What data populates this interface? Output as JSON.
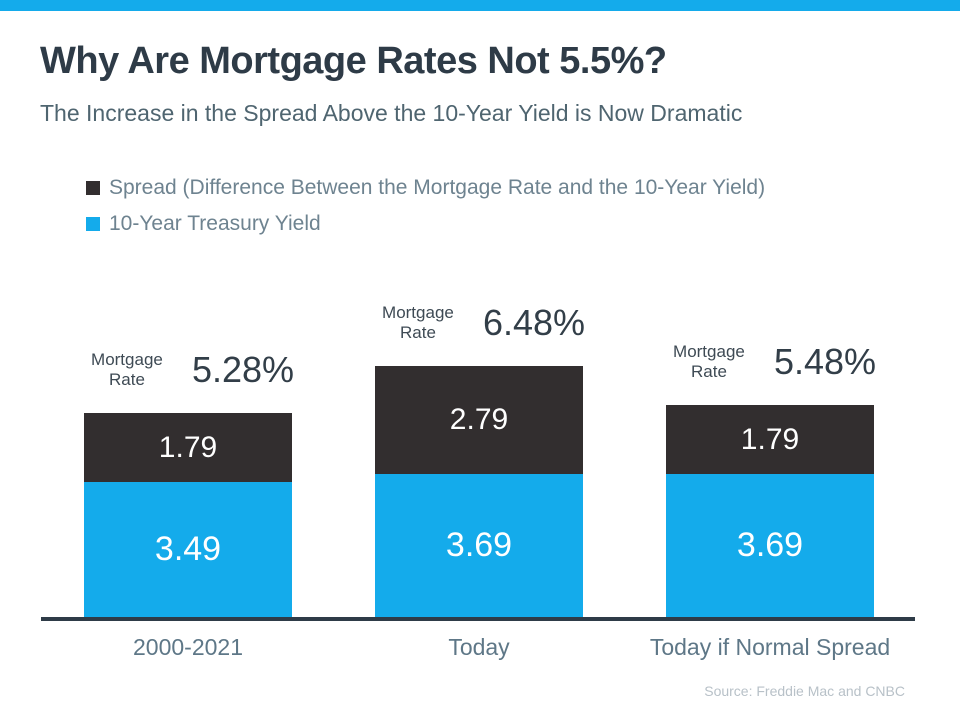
{
  "page": {
    "title": "Why Are Mortgage Rates Not 5.5%?",
    "subtitle": "The Increase in the Spread Above the 10-Year Yield is Now Dramatic",
    "source": "Source: Freddie Mac and CNBC"
  },
  "legend": {
    "items": [
      {
        "label": "Spread (Difference Between the Mortgage Rate and the 10-Year Yield)",
        "color": "#322E2F"
      },
      {
        "label": "10-Year Treasury Yield",
        "color": "#14ABEB"
      }
    ]
  },
  "chart_data": {
    "type": "bar",
    "stacked": true,
    "title": "Why Are Mortgage Rates Not 5.5%?",
    "subtitle": "The Increase in the Spread Above the 10-Year Yield is Now Dramatic",
    "categories": [
      "2000-2021",
      "Today",
      "Today if Normal Spread"
    ],
    "series": [
      {
        "name": "Spread (Difference Between the Mortgage Rate and the 10-Year Yield)",
        "color": "#322E2F",
        "values": [
          1.79,
          2.79,
          1.79
        ]
      },
      {
        "name": "10-Year Treasury Yield",
        "color": "#14ABEB",
        "values": [
          3.49,
          3.69,
          3.69
        ]
      }
    ],
    "annotation_label": "Mortgage Rate",
    "annotation_totals": [
      "5.28%",
      "6.48%",
      "5.48%"
    ],
    "xlabel": "",
    "ylabel": "",
    "ylim": [
      0,
      6.5
    ],
    "grid": false,
    "legend_position": "top-left",
    "value_labels": "inside-white"
  },
  "colors": {
    "accent_blue": "#14ABEB",
    "spread_dark": "#322E2F",
    "title_text": "#2E3B47",
    "subtitle_text": "#4F6570",
    "legend_text": "#6E8390",
    "category_text": "#5E7787",
    "annotation_text": "#323E48",
    "axis_line": "#2E3B47",
    "source_text": "#B8C1C8"
  }
}
